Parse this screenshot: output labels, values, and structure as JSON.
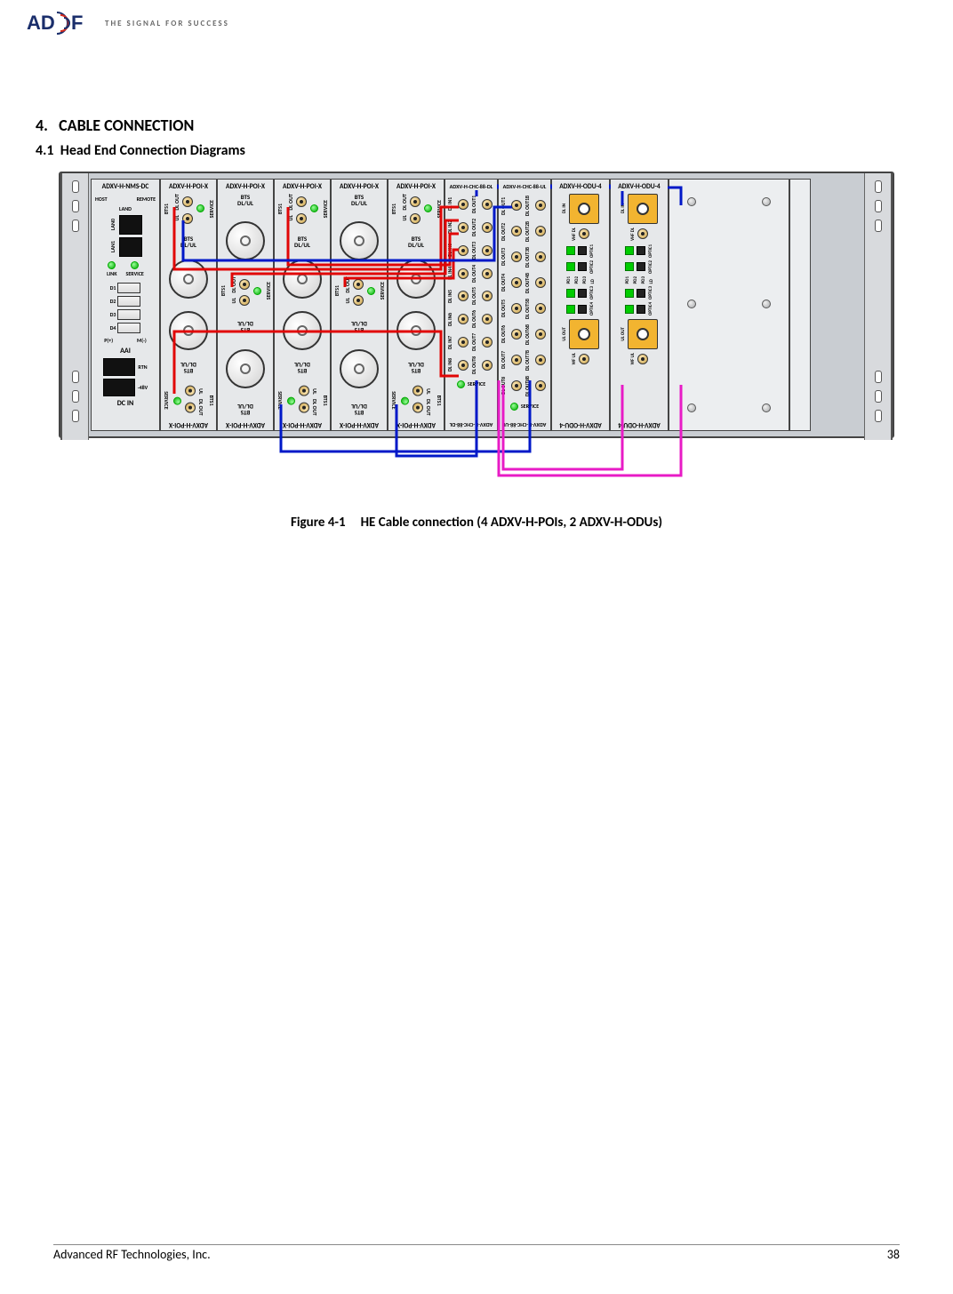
{
  "header": {
    "logo_a": "AD",
    "logo_b": "F",
    "tagline": "THE SIGNAL FOR SUCCESS"
  },
  "section": {
    "num": "4.",
    "title": "CABLE CONNECTION",
    "sub_num": "4.1",
    "sub_title": "Head End Connection Diagrams"
  },
  "caption": {
    "fig": "Figure 4-1",
    "text": "HE Cable connection (4 ADXV-H-POIs, 2 ADXV-H-ODUs)"
  },
  "footer": {
    "company": "Advanced RF Technologies, Inc.",
    "page": "38"
  },
  "cards": {
    "nms": {
      "title": "ADXV-H-NMS-DC",
      "host": "HOST",
      "remote": "REMOTE",
      "land": "LAND",
      "lan0": "LAN0",
      "lan1": "LAN1",
      "link": "LINK",
      "service": "SERVICE",
      "d1": "D1",
      "d2": "D2",
      "d3": "D3",
      "d4": "D4",
      "pplus": "P(+)",
      "mminus": "M(-)",
      "aai": "AAI",
      "rtn": "RTN",
      "minus48": "-48V",
      "dcin": "DC IN"
    },
    "poi": {
      "title": "ADXV-H-POI-X",
      "bottom": "ADXV-H-POI-X",
      "dlout": "DL OUT",
      "ul": "UL",
      "bts1": "BTS1",
      "service": "SERVICE",
      "bts_dlul": "BTS\nDL/UL",
      "bts_dlul_inv": "BTS\nDL/UL"
    },
    "chc_dl": {
      "title": "ADXV-H-CHC-88-DL",
      "bottom": "ADXV-H-CHC-88-DL",
      "dl_in": "DL IN",
      "dl_out": "DL OUT",
      "service": "SERVICE"
    },
    "chc_ul": {
      "title": "ADXV-H-CHC-88-UL",
      "bottom": "ADXV-H-CHC-88-UL",
      "ul_out": "UL OUT",
      "service": "SERVICE"
    },
    "odu": {
      "title": "ADXV-H-ODU-4",
      "bottom": "ADXV-H-ODU-4",
      "dlin": "DL IN",
      "vhf_dl": "VHF DL",
      "ul_out": "UL OUT",
      "wf_ul": "WF UL",
      "optic1": "OPTIC1",
      "optic2": "OPTIC2",
      "optic3": "OPTIC3",
      "optic4": "OPTIC4",
      "pd1": "PD1",
      "pd2": "PD2",
      "pd3": "PD3",
      "ld": "LD",
      "pwr": "PWR"
    }
  },
  "colors": {
    "cable_red": "#e10606",
    "cable_blue": "#0018c8",
    "cable_magenta": "#e81bc6"
  },
  "layout": {
    "widths": {
      "nms": 78,
      "poi": 64,
      "chc": 60,
      "odu": 66,
      "blank": 136,
      "endblank": 24
    }
  }
}
